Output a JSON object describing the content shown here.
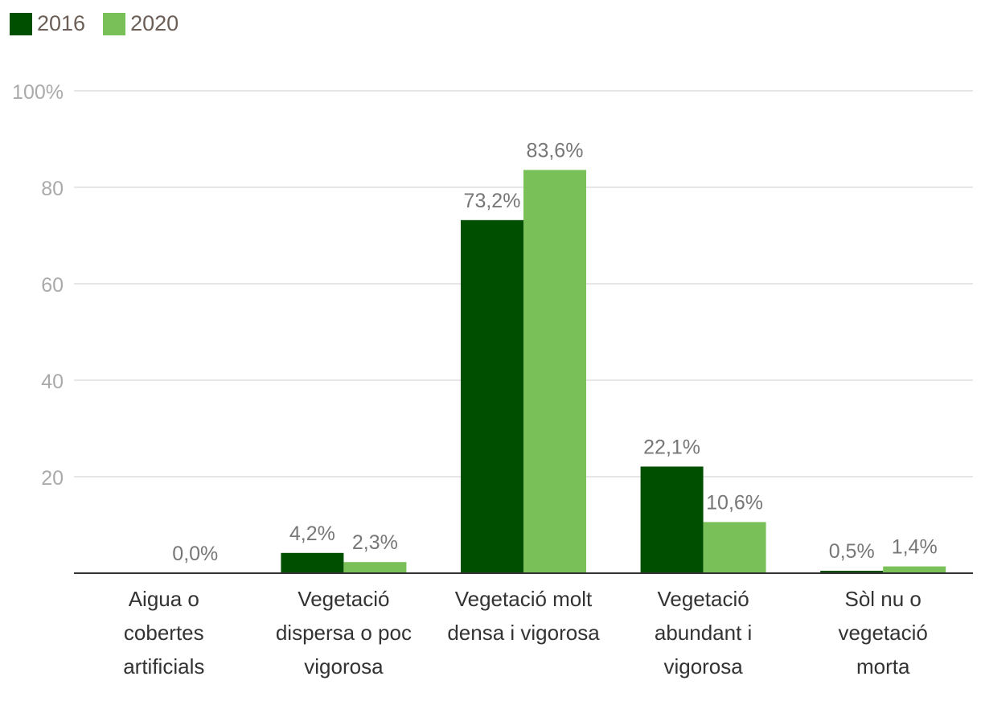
{
  "chart_data": {
    "type": "bar",
    "categories": [
      [
        "Aigua o",
        "cobertes",
        "artificials"
      ],
      [
        "Vegetació",
        "dispersa o poc",
        "vigorosa"
      ],
      [
        "Vegetació molt",
        "densa i vigorosa"
      ],
      [
        "Vegetació",
        "abundant i",
        "vigorosa"
      ],
      [
        "Sòl nu o",
        "vegetació",
        "morta"
      ]
    ],
    "series": [
      {
        "name": "2016",
        "color": "#004f00",
        "values": [
          null,
          4.2,
          73.2,
          22.1,
          0.5
        ],
        "labels": [
          "",
          "4,2%",
          "73,2%",
          "22,1%",
          "0,5%"
        ]
      },
      {
        "name": "2020",
        "color": "#78c057",
        "values": [
          0.0,
          2.3,
          83.6,
          10.6,
          1.4
        ],
        "labels": [
          "0,0%",
          "2,3%",
          "83,6%",
          "10,6%",
          "1,4%"
        ]
      }
    ],
    "yticks": [
      {
        "value": 20,
        "label": "20"
      },
      {
        "value": 40,
        "label": "40"
      },
      {
        "value": 60,
        "label": "60"
      },
      {
        "value": 80,
        "label": "80"
      },
      {
        "value": 100,
        "label": "100%"
      }
    ],
    "ylim": [
      0,
      100
    ],
    "grid": true,
    "legend_position": "top-left",
    "colors": {
      "grid": "#dddddd",
      "axis": "#333333",
      "tick_label": "#aaaaaa",
      "data_label": "#777777",
      "category_label": "#333333"
    }
  }
}
